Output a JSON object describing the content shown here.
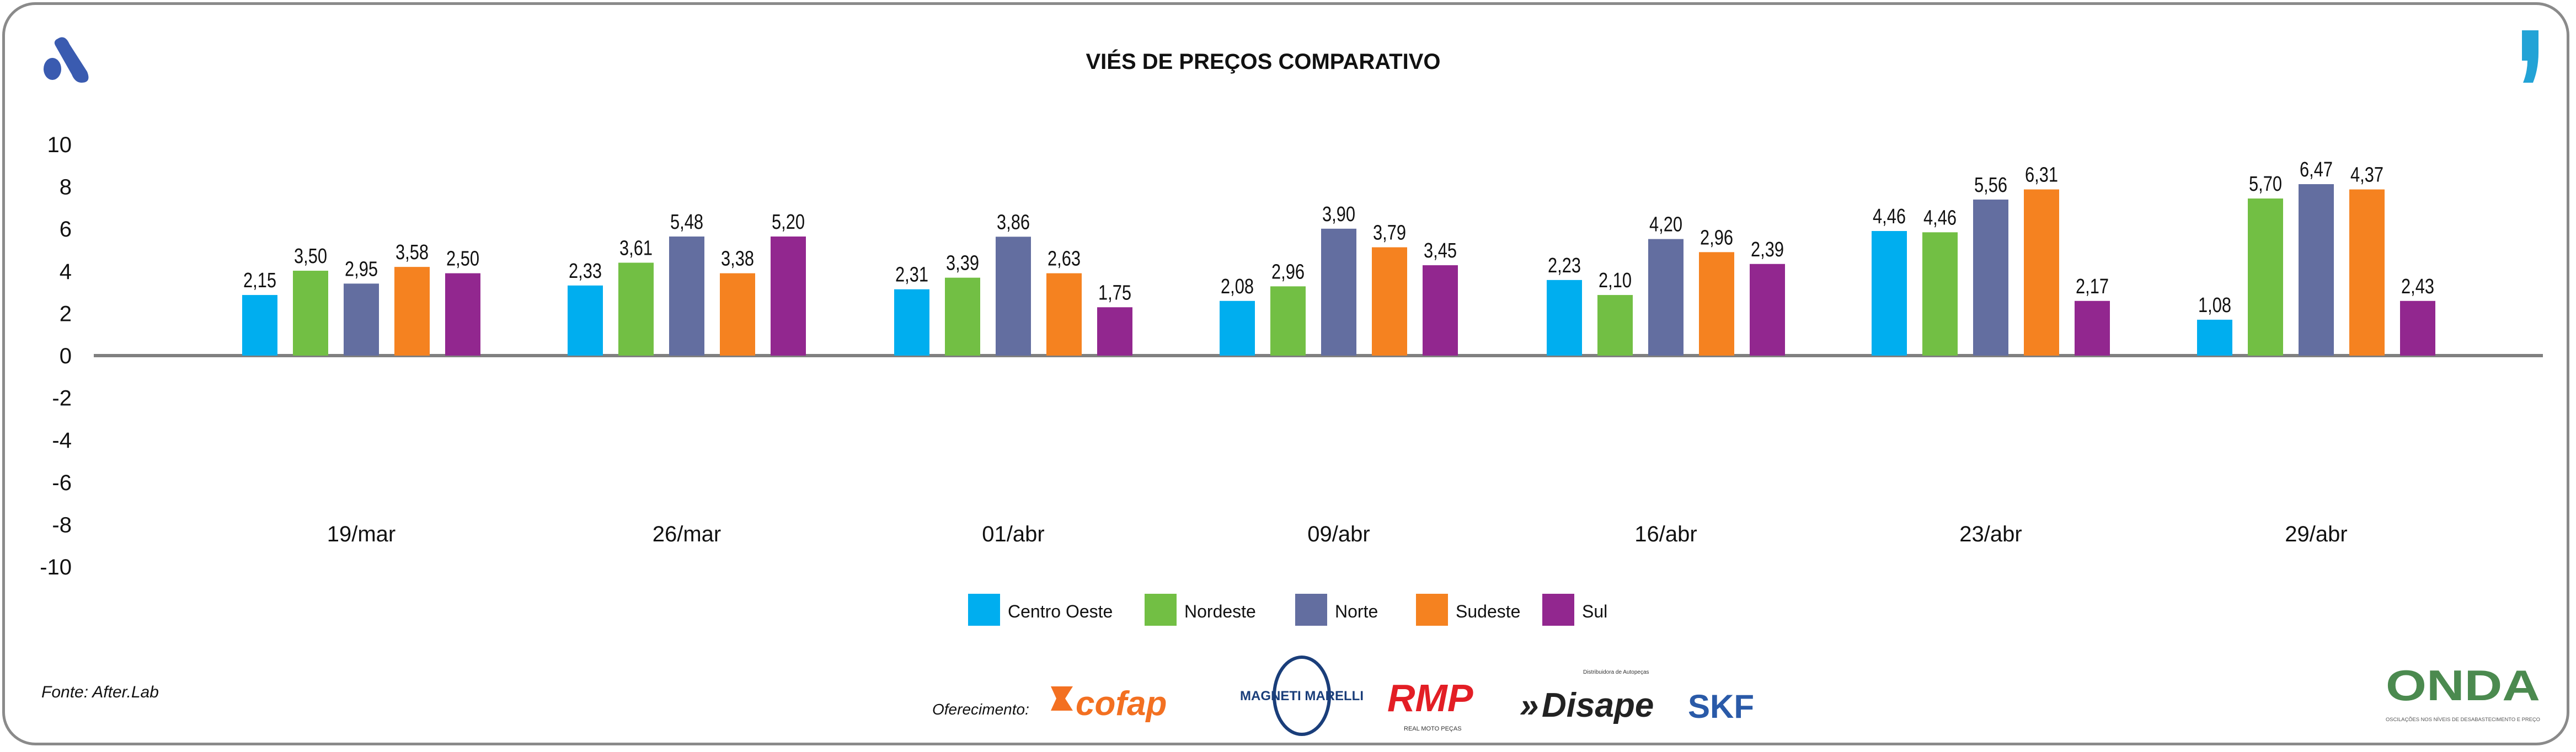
{
  "chart_data": {
    "type": "bar",
    "title": "VIÉS DE PREÇOS COMPARATIVO",
    "xlabel": "",
    "ylabel": "",
    "ylim": [
      -10,
      10
    ],
    "yticks": [
      "10",
      "8",
      "6",
      "4",
      "2",
      "0",
      "-2",
      "-4",
      "-6",
      "-8",
      "-10"
    ],
    "ytick_values": [
      10,
      8,
      6,
      4,
      2,
      0,
      -2,
      -4,
      -6,
      -8,
      -10
    ],
    "categories": [
      "19/mar",
      "26/mar",
      "01/abr",
      "09/abr",
      "16/abr",
      "23/abr",
      "29/abr"
    ],
    "legend_position": "bottom",
    "grid": false,
    "series": [
      {
        "name": "Centro Oeste",
        "color": "#00aeef",
        "labels": [
          "2,15",
          "2,33",
          "2,31",
          "2,08",
          "2,23",
          "4,46",
          "1,08"
        ],
        "values": [
          2.15,
          2.33,
          2.31,
          2.08,
          2.23,
          4.46,
          1.08
        ],
        "bar_heights": [
          2.87,
          3.32,
          3.14,
          2.59,
          3.58,
          5.9,
          1.7
        ]
      },
      {
        "name": "Nordeste",
        "color": "#72bf44",
        "labels": [
          "3,50",
          "3,61",
          "3,39",
          "2,96",
          "2,10",
          "4,46",
          "5,70"
        ],
        "values": [
          3.5,
          3.61,
          3.39,
          2.96,
          2.1,
          4.46,
          5.7
        ],
        "bar_heights": [
          4.02,
          4.4,
          3.69,
          3.28,
          2.87,
          5.84,
          7.44
        ]
      },
      {
        "name": "Norte",
        "color": "#636ea0",
        "labels": [
          "2,95",
          "5,48",
          "3,86",
          "3,90",
          "4,20",
          "5,56",
          "6,47"
        ],
        "values": [
          2.95,
          5.48,
          3.86,
          3.9,
          4.2,
          5.56,
          6.47
        ],
        "bar_heights": [
          3.41,
          5.64,
          5.63,
          6.01,
          5.52,
          7.39,
          8.12
        ]
      },
      {
        "name": "Sudeste",
        "color": "#f58220",
        "labels": [
          "3,58",
          "3,38",
          "2,63",
          "3,79",
          "2,96",
          "6,31",
          "4,37"
        ],
        "values": [
          3.58,
          3.38,
          2.63,
          3.79,
          2.96,
          6.31,
          4.37
        ],
        "bar_heights": [
          4.2,
          3.9,
          3.9,
          5.13,
          4.9,
          7.87,
          7.87
        ]
      },
      {
        "name": "Sul",
        "color": "#92278f",
        "labels": [
          "2,50",
          "5,20",
          "1,75",
          "3,45",
          "2,39",
          "2,17",
          "2,43"
        ],
        "values": [
          2.5,
          5.2,
          1.75,
          3.45,
          2.39,
          2.17,
          2.43
        ],
        "bar_heights": [
          3.9,
          5.64,
          2.29,
          4.28,
          4.34,
          2.59,
          2.59
        ]
      }
    ]
  },
  "footer": {
    "source": "Fonte: After.Lab",
    "sponsor_label": "Oferecimento:",
    "sponsors": [
      "cofap",
      "MAGNETI MARELLI",
      "RMP",
      "Disape",
      "SKF"
    ],
    "rmp_tagline": "REAL MOTO PEÇAS",
    "disape_tagline": "Distribuidora de Autopeças",
    "onda": "ONDA",
    "onda_tagline": "OSCILAÇÕES NOS NÍVEIS DE DESABASTECIMENTO E PREÇO"
  },
  "colors": {
    "logo_a": "#3a5bb0",
    "logo_comma": "#23a3d6",
    "axis": "#808080"
  }
}
